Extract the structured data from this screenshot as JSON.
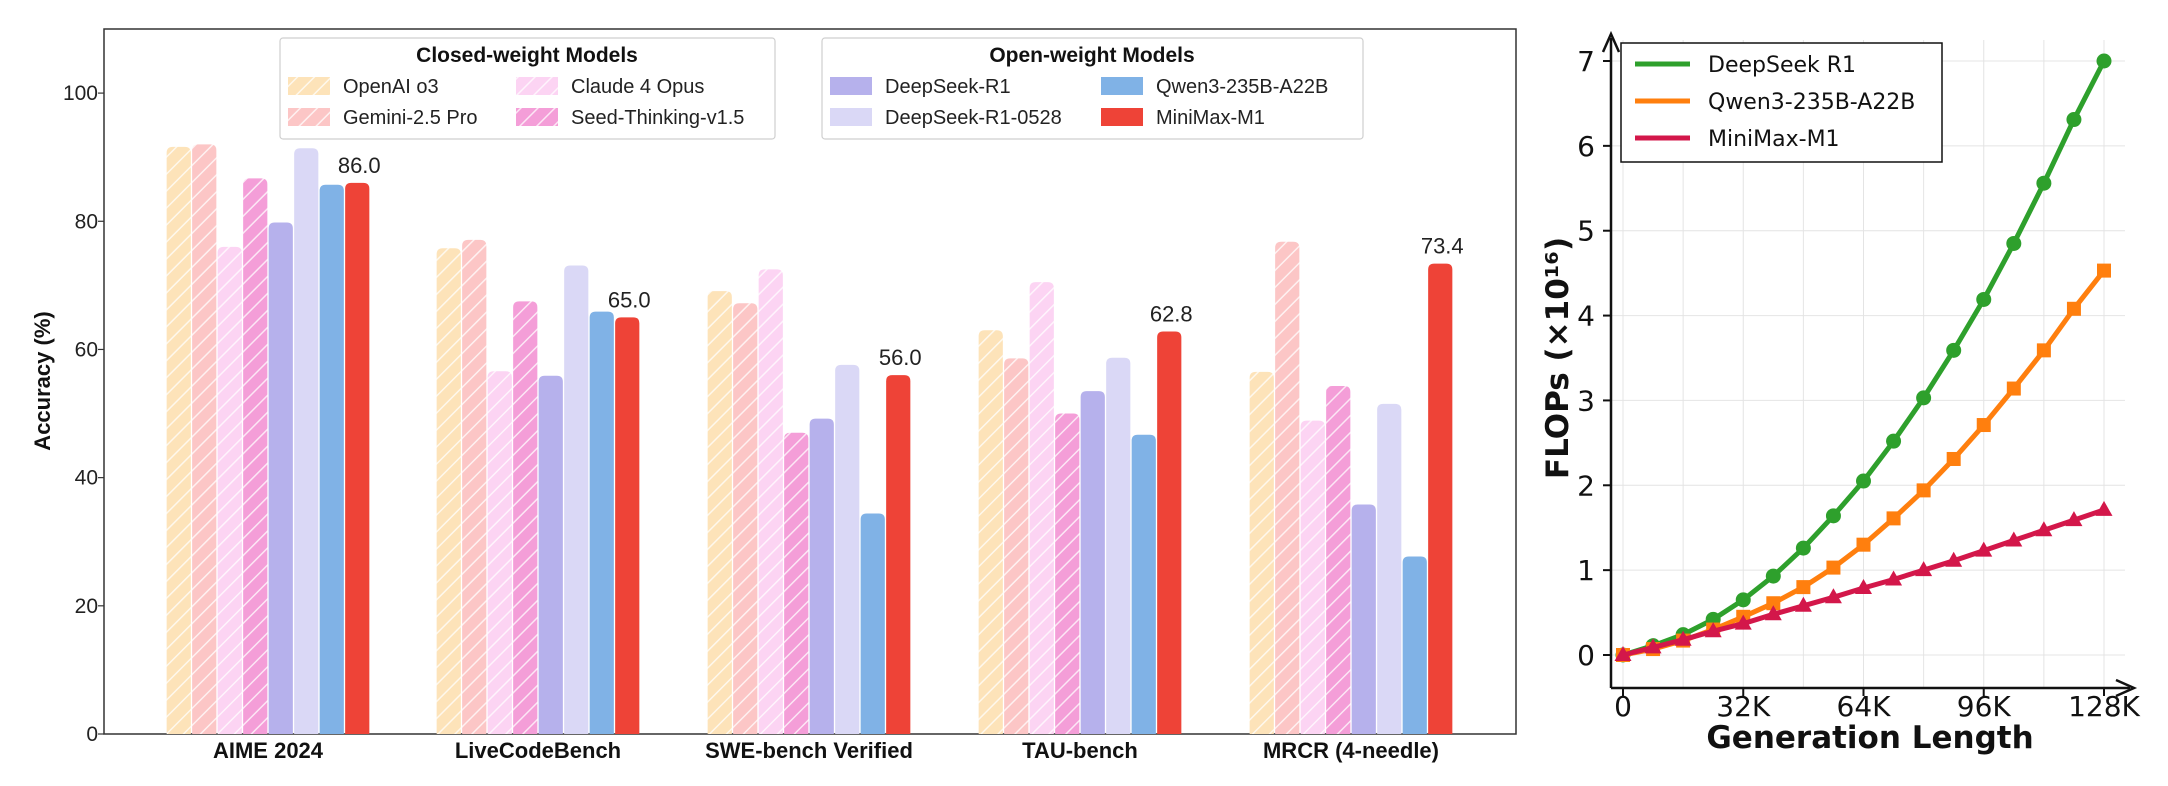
{
  "chart_data": [
    {
      "type": "bar",
      "ylabel": "Accuracy (%)",
      "ylim": [
        0,
        110
      ],
      "yticks": [
        0,
        20,
        40,
        60,
        80,
        100
      ],
      "grid": false,
      "categories": [
        "AIME 2024",
        "LiveCodeBench",
        "SWE-bench Verified",
        "TAU-bench",
        "MRCR (4-needle)"
      ],
      "legend": {
        "placement": "top",
        "closed_title": "Closed-weight Models",
        "open_title": "Open-weight Models"
      },
      "series": [
        {
          "name": "OpenAI o3",
          "group": "closed",
          "color": "#fde3b9",
          "pattern": "hatch",
          "values": [
            91.6,
            75.8,
            69.1,
            63.0,
            56.5
          ]
        },
        {
          "name": "Gemini-2.5 Pro",
          "group": "closed",
          "color": "#fcc6c6",
          "pattern": "hatch",
          "values": [
            92.0,
            77.1,
            67.2,
            58.6,
            76.8
          ]
        },
        {
          "name": "Claude 4 Opus",
          "group": "closed",
          "color": "#fcd4f3",
          "pattern": "hatch",
          "values": [
            76.0,
            56.6,
            72.5,
            70.5,
            48.9
          ]
        },
        {
          "name": "Seed-Thinking-v1.5",
          "group": "closed",
          "color": "#f49ed8",
          "pattern": "hatch",
          "values": [
            86.7,
            67.5,
            47.0,
            50.0,
            54.3
          ]
        },
        {
          "name": "DeepSeek-R1",
          "group": "open",
          "color": "#b6b1ec",
          "pattern": "solid",
          "values": [
            79.8,
            55.9,
            49.2,
            53.5,
            35.8
          ]
        },
        {
          "name": "DeepSeek-R1-0528",
          "group": "open",
          "color": "#dad8f6",
          "pattern": "solid",
          "values": [
            91.4,
            73.1,
            57.6,
            58.7,
            51.5
          ]
        },
        {
          "name": "Qwen3-235B-A22B",
          "group": "open",
          "color": "#80b2e6",
          "pattern": "solid",
          "values": [
            85.7,
            65.9,
            34.4,
            46.7,
            27.7
          ]
        },
        {
          "name": "MiniMax-M1",
          "group": "open",
          "color": "#ee4337",
          "pattern": "solid",
          "values": [
            86.0,
            65.0,
            56.0,
            62.8,
            73.4
          ]
        }
      ],
      "data_labels": [
        "86.0",
        "65.0",
        "56.0",
        "62.8",
        "73.4"
      ]
    },
    {
      "type": "line",
      "xlabel": "Generation Length",
      "ylabel": "FLOPs (×10¹⁶)",
      "xticks": [
        "0",
        "32K",
        "64K",
        "96K",
        "128K"
      ],
      "xlim": [
        0,
        128
      ],
      "ylim": [
        0,
        7
      ],
      "yticks": [
        0,
        1,
        2,
        3,
        4,
        5,
        6,
        7
      ],
      "grid": true,
      "legend_placement": "top-left",
      "x": [
        0,
        8,
        16,
        24,
        32,
        40,
        48,
        56,
        64,
        72,
        80,
        88,
        96,
        104,
        112,
        120,
        128
      ],
      "series": [
        {
          "name": "DeepSeek R1",
          "color": "#2ea02c",
          "marker": "circle",
          "values": [
            0.0,
            0.11,
            0.24,
            0.42,
            0.65,
            0.93,
            1.26,
            1.64,
            2.05,
            2.52,
            3.03,
            3.59,
            4.19,
            4.85,
            5.56,
            6.31,
            7.0
          ]
        },
        {
          "name": "Qwen3-235B-A22B",
          "color": "#ff7f0e",
          "marker": "square",
          "values": [
            0.0,
            0.07,
            0.17,
            0.3,
            0.45,
            0.61,
            0.8,
            1.03,
            1.3,
            1.61,
            1.94,
            2.31,
            2.71,
            3.14,
            3.59,
            4.08,
            4.53
          ]
        },
        {
          "name": "MiniMax-M1",
          "color": "#d3174a",
          "marker": "triangle",
          "values": [
            0.0,
            0.09,
            0.18,
            0.28,
            0.37,
            0.48,
            0.58,
            0.68,
            0.79,
            0.89,
            1.0,
            1.11,
            1.23,
            1.35,
            1.47,
            1.59,
            1.71
          ]
        }
      ]
    }
  ]
}
